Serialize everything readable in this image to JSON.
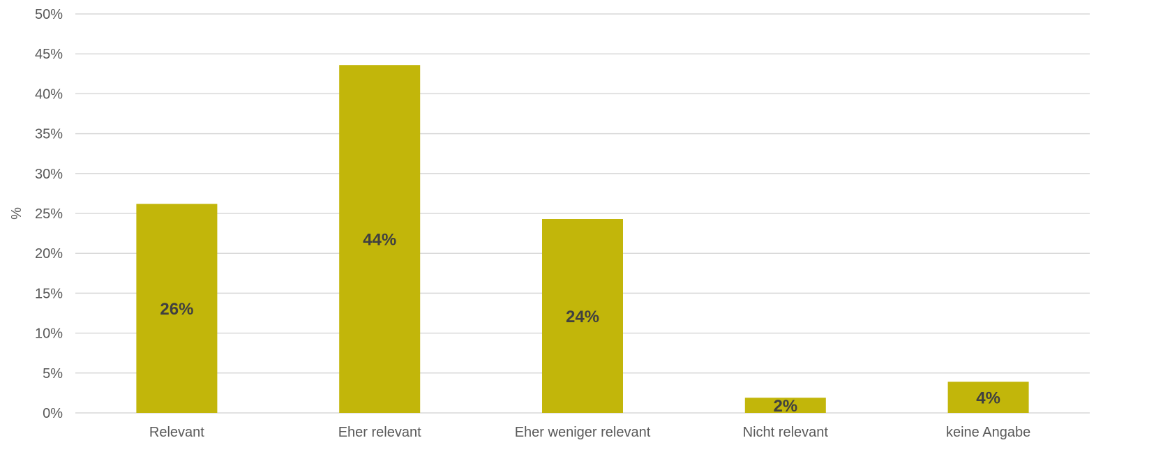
{
  "chart_data": {
    "type": "bar",
    "title": "",
    "xlabel": "",
    "ylabel": "%",
    "ylim": [
      0,
      50
    ],
    "yticks": [
      0,
      5,
      10,
      15,
      20,
      25,
      30,
      35,
      40,
      45,
      50
    ],
    "tick_suffix": "%",
    "grid": true,
    "legend": "none",
    "categories": [
      "Relevant",
      "Eher relevant",
      "Eher weniger relevant",
      "Nicht relevant",
      "keine Angabe"
    ],
    "values": [
      26.2,
      43.6,
      24.3,
      1.9,
      3.9
    ],
    "data_labels": [
      "26%",
      "44%",
      "24%",
      "2%",
      "4%"
    ],
    "colors": {
      "bar": "#c2b60a",
      "grid": "#d9d9d9",
      "text": "#595959",
      "data_label": "#404040"
    }
  }
}
